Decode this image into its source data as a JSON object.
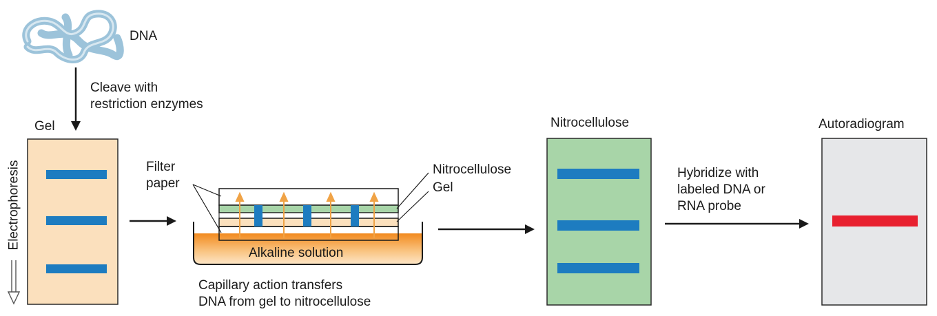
{
  "dna_label": "DNA",
  "cleave_text": [
    "Cleave with",
    "restriction enzymes"
  ],
  "gel_title": "Gel",
  "electrophoresis_label": "Electrophoresis",
  "filter_paper_text": [
    "Filter",
    "paper"
  ],
  "stack_nitrocellulose_label": "Nitrocellulose",
  "stack_gel_label": "Gel",
  "alkaline_label": "Alkaline solution",
  "capillary_text": [
    "Capillary action transfers",
    "DNA from gel to nitrocellulose"
  ],
  "nitrocellulose_title": "Nitrocellulose",
  "hybridize_text": [
    "Hybridize with",
    "labeled DNA or",
    "RNA probe"
  ],
  "autoradiogram_title": "Autoradiogram",
  "colors": {
    "dna": "#9cc3da",
    "gel_fill": "#fbe0bd",
    "band": "#1d7cc0",
    "nitro_fill": "#a8d5a8",
    "auto_fill": "#e6e7e9",
    "probe_band": "#e8202f",
    "solution": "#f59a3c",
    "arrow_up": "#f0a346",
    "stroke": "#1a1a1a"
  }
}
